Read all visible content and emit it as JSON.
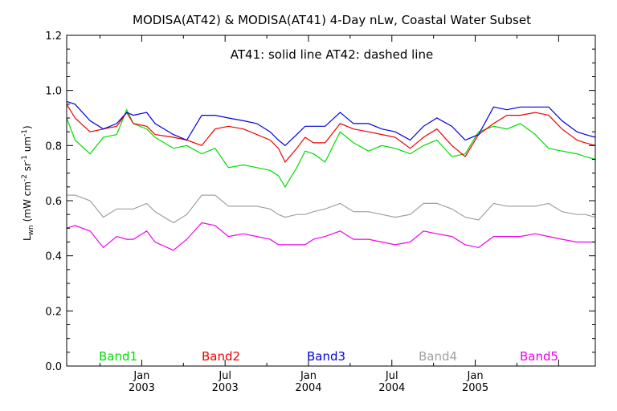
{
  "chart_data": {
    "type": "line",
    "title": "MODISA(AT42) & MODISA(AT41) 4-Day nLw, Coastal Water Subset",
    "annotation": "AT41: solid line   AT42: dashed line",
    "ylabel": {
      "main": "L",
      "main_sub": "wn",
      "units_open": " (mW cm",
      "exp1": "-2",
      "mid1": " sr",
      "exp2": "-1",
      "mid2": " um",
      "exp3": "-1",
      "units_close": ")"
    },
    "ylim": [
      0.0,
      1.2
    ],
    "yticks": [
      "0.0",
      "0.2",
      "0.4",
      "0.6",
      "0.8",
      "1.0",
      "1.2"
    ],
    "xlim": [
      2002.55,
      2005.72
    ],
    "xticks": [
      {
        "x": 2003.0,
        "month": "Jan",
        "year": "2003"
      },
      {
        "x": 2003.5,
        "month": "Jul",
        "year": "2003"
      },
      {
        "x": 2004.0,
        "month": "Jan",
        "year": "2004"
      },
      {
        "x": 2004.5,
        "month": "Jul",
        "year": "2004"
      },
      {
        "x": 2005.0,
        "month": "Jan",
        "year": "2005"
      }
    ],
    "grid": false,
    "legend_placement": "bottom",
    "x": [
      2002.55,
      2002.6,
      2002.69,
      2002.77,
      2002.85,
      2002.91,
      2002.95,
      2003.03,
      2003.08,
      2003.19,
      2003.27,
      2003.36,
      2003.44,
      2003.52,
      2003.61,
      2003.69,
      2003.77,
      2003.82,
      2003.86,
      2003.93,
      2003.98,
      2004.03,
      2004.1,
      2004.19,
      2004.27,
      2004.36,
      2004.44,
      2004.52,
      2004.61,
      2004.69,
      2004.77,
      2004.86,
      2004.94,
      2005.02,
      2005.11,
      2005.19,
      2005.27,
      2005.36,
      2005.44,
      2005.52,
      2005.61,
      2005.66,
      2005.72
    ],
    "series": [
      {
        "name": "Band1",
        "color": "#00dd00",
        "values": [
          0.9,
          0.82,
          0.77,
          0.83,
          0.84,
          0.93,
          0.88,
          0.86,
          0.83,
          0.79,
          0.8,
          0.77,
          0.79,
          0.72,
          0.73,
          0.72,
          0.71,
          0.69,
          0.65,
          0.72,
          0.78,
          0.77,
          0.74,
          0.85,
          0.81,
          0.78,
          0.8,
          0.79,
          0.77,
          0.8,
          0.82,
          0.76,
          0.77,
          0.85,
          0.87,
          0.86,
          0.88,
          0.84,
          0.79,
          0.78,
          0.77,
          0.76,
          0.75
        ]
      },
      {
        "name": "Band2",
        "color": "#ee0000",
        "values": [
          0.95,
          0.9,
          0.85,
          0.86,
          0.87,
          0.92,
          0.88,
          0.87,
          0.84,
          0.83,
          0.82,
          0.8,
          0.86,
          0.87,
          0.86,
          0.84,
          0.82,
          0.79,
          0.74,
          0.79,
          0.83,
          0.81,
          0.81,
          0.88,
          0.86,
          0.85,
          0.84,
          0.83,
          0.79,
          0.83,
          0.86,
          0.8,
          0.76,
          0.84,
          0.88,
          0.91,
          0.91,
          0.92,
          0.91,
          0.86,
          0.82,
          0.81,
          0.8
        ]
      },
      {
        "name": "Band3",
        "color": "#0000dd",
        "values": [
          0.96,
          0.95,
          0.89,
          0.86,
          0.88,
          0.92,
          0.91,
          0.92,
          0.88,
          0.84,
          0.82,
          0.91,
          0.91,
          0.9,
          0.89,
          0.88,
          0.85,
          0.82,
          0.8,
          0.84,
          0.87,
          0.87,
          0.87,
          0.92,
          0.88,
          0.88,
          0.86,
          0.85,
          0.82,
          0.87,
          0.9,
          0.87,
          0.82,
          0.84,
          0.94,
          0.93,
          0.94,
          0.94,
          0.94,
          0.89,
          0.85,
          0.84,
          0.83
        ]
      },
      {
        "name": "Band4",
        "color": "#a0a0a0",
        "values": [
          0.62,
          0.62,
          0.6,
          0.54,
          0.57,
          0.57,
          0.57,
          0.59,
          0.56,
          0.52,
          0.55,
          0.62,
          0.62,
          0.58,
          0.58,
          0.58,
          0.57,
          0.55,
          0.54,
          0.55,
          0.55,
          0.56,
          0.57,
          0.59,
          0.56,
          0.56,
          0.55,
          0.54,
          0.55,
          0.59,
          0.59,
          0.57,
          0.54,
          0.53,
          0.59,
          0.58,
          0.58,
          0.58,
          0.59,
          0.56,
          0.55,
          0.55,
          0.54
        ]
      },
      {
        "name": "Band5",
        "color": "#ee00ee",
        "values": [
          0.5,
          0.51,
          0.49,
          0.43,
          0.47,
          0.46,
          0.46,
          0.49,
          0.45,
          0.42,
          0.46,
          0.52,
          0.51,
          0.47,
          0.48,
          0.47,
          0.46,
          0.44,
          0.44,
          0.44,
          0.44,
          0.46,
          0.47,
          0.49,
          0.46,
          0.46,
          0.45,
          0.44,
          0.45,
          0.49,
          0.48,
          0.47,
          0.44,
          0.43,
          0.47,
          0.47,
          0.47,
          0.48,
          0.47,
          0.46,
          0.45,
          0.45,
          0.45
        ]
      }
    ]
  }
}
